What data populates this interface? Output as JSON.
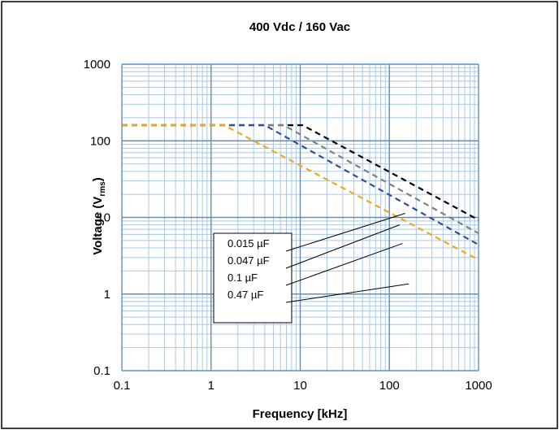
{
  "chart_data": {
    "type": "line",
    "title": "400 Vdc / 160 Vac",
    "xlabel": "Frequency [kHz]",
    "ylabel_main": "Voltage (V",
    "ylabel_sub": "rms",
    "ylabel_close": ")",
    "x_scale": "log",
    "y_scale": "log",
    "xlim": [
      0.1,
      1000
    ],
    "ylim": [
      0.1,
      1000
    ],
    "x_ticks": [
      "0.1",
      "1",
      "10",
      "100",
      "1000"
    ],
    "y_ticks": [
      "0.1",
      "1",
      "10",
      "100",
      "1000"
    ],
    "grid": true,
    "legend_placement": "inside-left",
    "series": [
      {
        "name": "0.015 µF",
        "color": "#000000",
        "x": [
          0.1,
          10.6,
          1000
        ],
        "y": [
          160,
          160,
          9.3
        ]
      },
      {
        "name": "0.047 µF",
        "color": "#808080",
        "x": [
          0.1,
          6.5,
          1000
        ],
        "y": [
          160,
          160,
          6.2
        ]
      },
      {
        "name": "0.1   µF",
        "color": "#2f4f9a",
        "x": [
          0.1,
          4.0,
          1000
        ],
        "y": [
          160,
          160,
          4.4
        ]
      },
      {
        "name": "0.47  µF",
        "color": "#f0a818",
        "x": [
          0.1,
          1.4,
          1000
        ],
        "y": [
          160,
          160,
          2.8
        ]
      }
    ]
  }
}
